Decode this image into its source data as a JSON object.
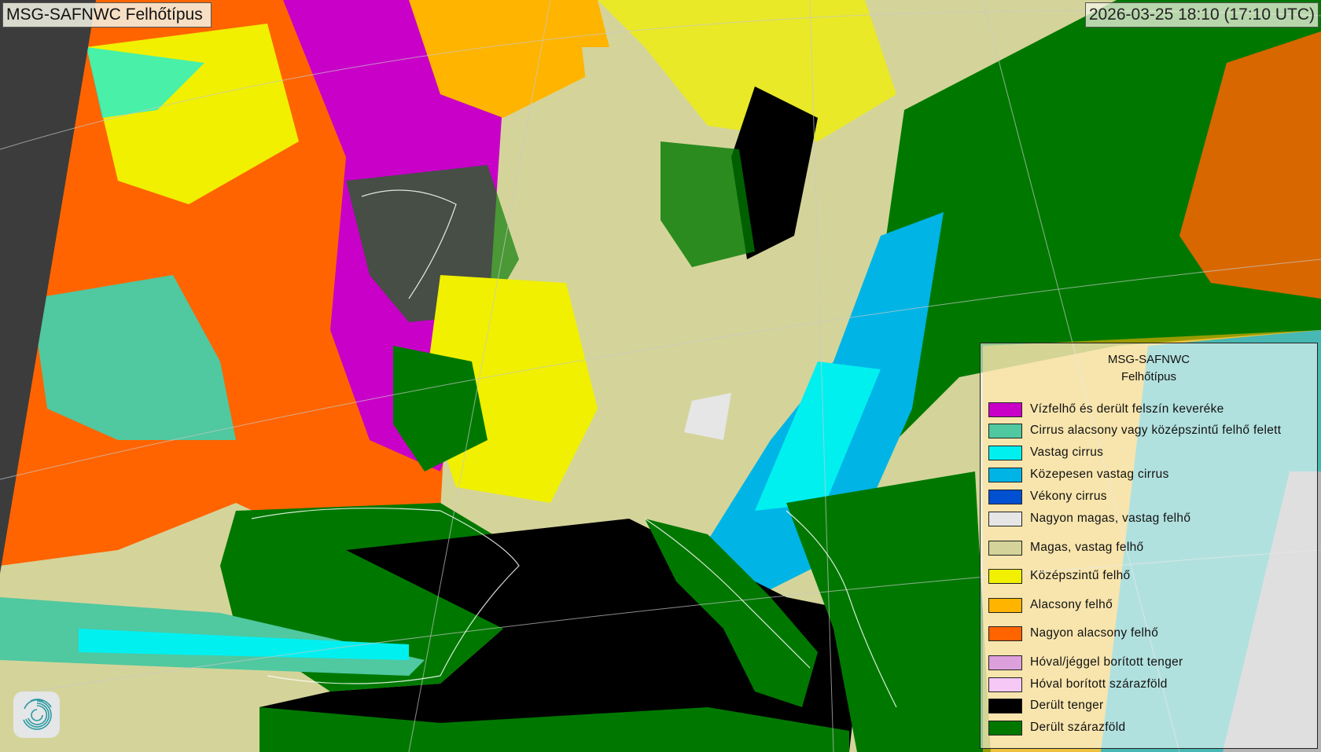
{
  "header": {
    "title": "MSG-SAFNWC Felhőtípus",
    "timestamp": "2026-03-25 18:10 (17:10 UTC)"
  },
  "legend": {
    "title_line1": "MSG-SAFNWC",
    "title_line2": "Felhőtípus",
    "items": [
      {
        "label": "Vízfelhő és derült felszín keveréke",
        "color": "#c800c8"
      },
      {
        "label": "Cirrus alacsony vagy középszintű felhő felett",
        "color": "#50c8a0"
      },
      {
        "label": "Vastag cirrus",
        "color": "#00f0f0"
      },
      {
        "label": "Közepesen vastag cirrus",
        "color": "#00b4e6"
      },
      {
        "label": "Vékony cirrus",
        "color": "#0050d2"
      },
      {
        "label": "Nagyon magas, vastag felhő",
        "color": "#e6e6e6"
      },
      {
        "label": "Magas, vastag felhő",
        "color": "#d4d49a"
      },
      {
        "label": "Középszintű felhő",
        "color": "#f0f000"
      },
      {
        "label": "Alacsony felhő",
        "color": "#ffb400"
      },
      {
        "label": "Nagyon alacsony felhő",
        "color": "#ff6400"
      },
      {
        "label": "Hóval/jéggel borított tenger",
        "color": "#dca0dc"
      },
      {
        "label": "Hóval borított szárazföld",
        "color": "#f5c8f5"
      },
      {
        "label": "Derült tenger",
        "color": "#000000"
      },
      {
        "label": "Derült szárazföld",
        "color": "#007800"
      }
    ]
  },
  "map": {
    "outside_disk_color": "#3c3c3c",
    "no_data_color": "#b4b4b4",
    "logo_icon": "swirl-logo-icon"
  }
}
